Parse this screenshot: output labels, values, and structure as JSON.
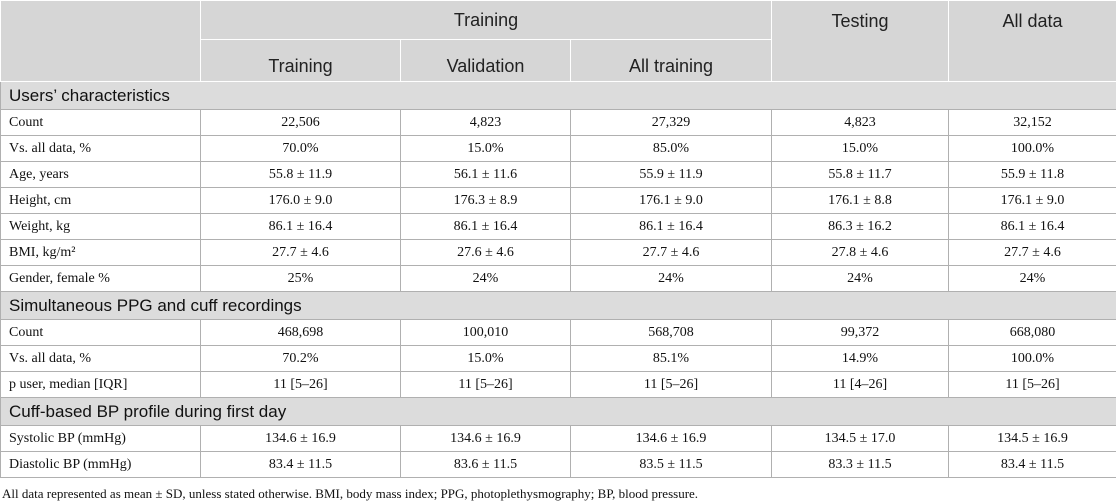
{
  "header": {
    "group": "Training",
    "training": "Training",
    "validation": "Validation",
    "all_training": "All training",
    "testing": "Testing",
    "all_data": "All data"
  },
  "sections": [
    {
      "title": "Users’ characteristics",
      "rows": [
        [
          "Count",
          "22,506",
          "4,823",
          "27,329",
          "4,823",
          "32,152"
        ],
        [
          "Vs. all data, %",
          "70.0%",
          "15.0%",
          "85.0%",
          "15.0%",
          "100.0%"
        ],
        [
          "Age, years",
          "55.8 ± 11.9",
          "56.1 ± 11.6",
          "55.9 ± 11.9",
          "55.8 ± 11.7",
          "55.9 ± 11.8"
        ],
        [
          "Height, cm",
          "176.0 ± 9.0",
          "176.3 ± 8.9",
          "176.1 ± 9.0",
          "176.1 ± 8.8",
          "176.1 ± 9.0"
        ],
        [
          "Weight, kg",
          "86.1 ± 16.4",
          "86.1 ± 16.4",
          "86.1 ± 16.4",
          "86.3 ± 16.2",
          "86.1 ± 16.4"
        ],
        [
          "BMI, kg/m²",
          "27.7 ± 4.6",
          "27.6 ± 4.6",
          "27.7 ± 4.6",
          "27.8 ± 4.6",
          "27.7 ± 4.6"
        ],
        [
          "Gender, female %",
          "25%",
          "24%",
          "24%",
          "24%",
          "24%"
        ]
      ]
    },
    {
      "title": "Simultaneous PPG and cuff recordings",
      "rows": [
        [
          "Count",
          "468,698",
          "100,010",
          "568,708",
          "99,372",
          "668,080"
        ],
        [
          "Vs. all data, %",
          "70.2%",
          "15.0%",
          "85.1%",
          "14.9%",
          "100.0%"
        ],
        [
          "p user, median [IQR]",
          "11 [5–26]",
          "11 [5–26]",
          "11 [5–26]",
          "11 [4–26]",
          "11 [5–26]"
        ]
      ]
    },
    {
      "title": "Cuff-based BP profile during first day",
      "rows": [
        [
          "Systolic BP (mmHg)",
          "134.6 ± 16.9",
          "134.6 ± 16.9",
          "134.6 ± 16.9",
          "134.5 ± 17.0",
          "134.5 ± 16.9"
        ],
        [
          "Diastolic BP (mmHg)",
          "83.4 ± 11.5",
          "83.6 ± 11.5",
          "83.5 ± 11.5",
          "83.3 ± 11.5",
          "83.4 ± 11.5"
        ]
      ]
    }
  ],
  "footnote": "All data represented as mean ± SD, unless stated otherwise. BMI, body mass index; PPG, photoplethysmography; BP, blood pressure."
}
